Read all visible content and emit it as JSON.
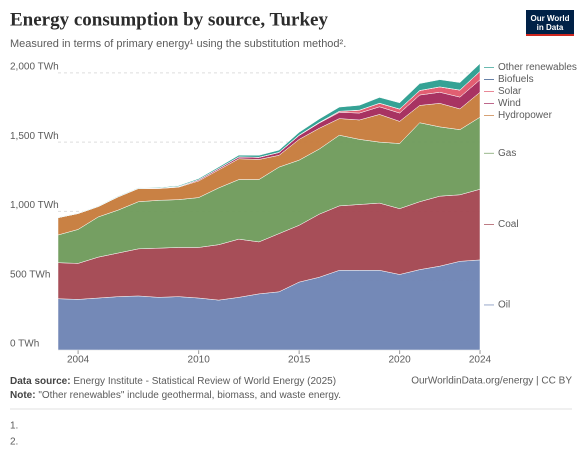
{
  "chart_data": {
    "type": "stacked-area",
    "title": "Energy consumption by source, Turkey",
    "subtitle": "Measured in terms of primary energy¹ using the substitution method².",
    "logo": "Our World in Data",
    "x": [
      2003,
      2004,
      2005,
      2006,
      2007,
      2008,
      2009,
      2010,
      2011,
      2012,
      2013,
      2014,
      2015,
      2016,
      2017,
      2018,
      2019,
      2020,
      2021,
      2022,
      2023,
      2024
    ],
    "xlim": [
      2003,
      2024
    ],
    "xticks": [
      2004,
      2010,
      2015,
      2020,
      2024
    ],
    "ylim": [
      0,
      2100
    ],
    "yticks": [
      {
        "value": 0,
        "label": "0 TWh"
      },
      {
        "value": 500,
        "label": "500 TWh"
      },
      {
        "value": 1000,
        "label": "1,000 TWh"
      },
      {
        "value": 1500,
        "label": "1,500 TWh"
      },
      {
        "value": 2000,
        "label": "2,000 TWh"
      }
    ],
    "grid": true,
    "series": [
      {
        "name": "Oil",
        "color": "#6d83b3",
        "values": [
          370,
          365,
          375,
          385,
          390,
          380,
          385,
          375,
          360,
          380,
          405,
          420,
          490,
          525,
          575,
          575,
          575,
          545,
          580,
          605,
          640,
          650
        ]
      },
      {
        "name": "Coal",
        "color": "#a2454f",
        "values": [
          260,
          260,
          295,
          315,
          340,
          355,
          355,
          365,
          400,
          420,
          375,
          420,
          410,
          455,
          465,
          475,
          485,
          475,
          490,
          505,
          480,
          510
        ]
      },
      {
        "name": "Gas",
        "color": "#6e9a5a",
        "values": [
          200,
          245,
          290,
          310,
          340,
          345,
          345,
          360,
          410,
          430,
          450,
          480,
          470,
          470,
          510,
          470,
          440,
          470,
          570,
          500,
          470,
          520
        ]
      },
      {
        "name": "Hydropower",
        "color": "#c67a3a",
        "values": [
          125,
          115,
          75,
          95,
          95,
          85,
          90,
          120,
          130,
          150,
          145,
          85,
          150,
          150,
          120,
          140,
          200,
          160,
          125,
          170,
          150,
          180
        ]
      },
      {
        "name": "Wind",
        "color": "#a3285a",
        "values": [
          0,
          0,
          0,
          1,
          1,
          2,
          4,
          8,
          10,
          13,
          15,
          20,
          28,
          38,
          45,
          50,
          55,
          60,
          75,
          80,
          85,
          90
        ]
      },
      {
        "name": "Solar",
        "color": "#e0556a",
        "values": [
          0,
          0,
          0,
          0,
          0,
          0,
          0,
          0,
          0,
          0,
          0,
          0.5,
          2,
          3,
          7,
          20,
          25,
          28,
          32,
          38,
          50,
          60
        ]
      },
      {
        "name": "Biofuels",
        "color": "#284c83",
        "values": [
          0,
          0,
          0,
          0,
          0,
          1,
          1,
          1,
          1,
          1,
          1,
          1,
          1,
          1,
          1,
          1,
          1,
          1,
          1,
          1,
          1,
          1
        ]
      },
      {
        "name": "Other renewables",
        "color": "#2a9d8f",
        "values": [
          3,
          3,
          3,
          4,
          4,
          5,
          6,
          8,
          10,
          12,
          14,
          16,
          20,
          25,
          30,
          35,
          42,
          45,
          50,
          52,
          54,
          56
        ]
      }
    ],
    "source_label": "Data source:",
    "source": "Energy Institute - Statistical Review of World Energy (2025)",
    "url": "OurWorldinData.org/energy | CC BY",
    "note_label": "Note:",
    "note": "\"Other renewables\" include geothermal, biomass, and waste energy.",
    "footnotes": [
      "1.",
      "2."
    ]
  }
}
